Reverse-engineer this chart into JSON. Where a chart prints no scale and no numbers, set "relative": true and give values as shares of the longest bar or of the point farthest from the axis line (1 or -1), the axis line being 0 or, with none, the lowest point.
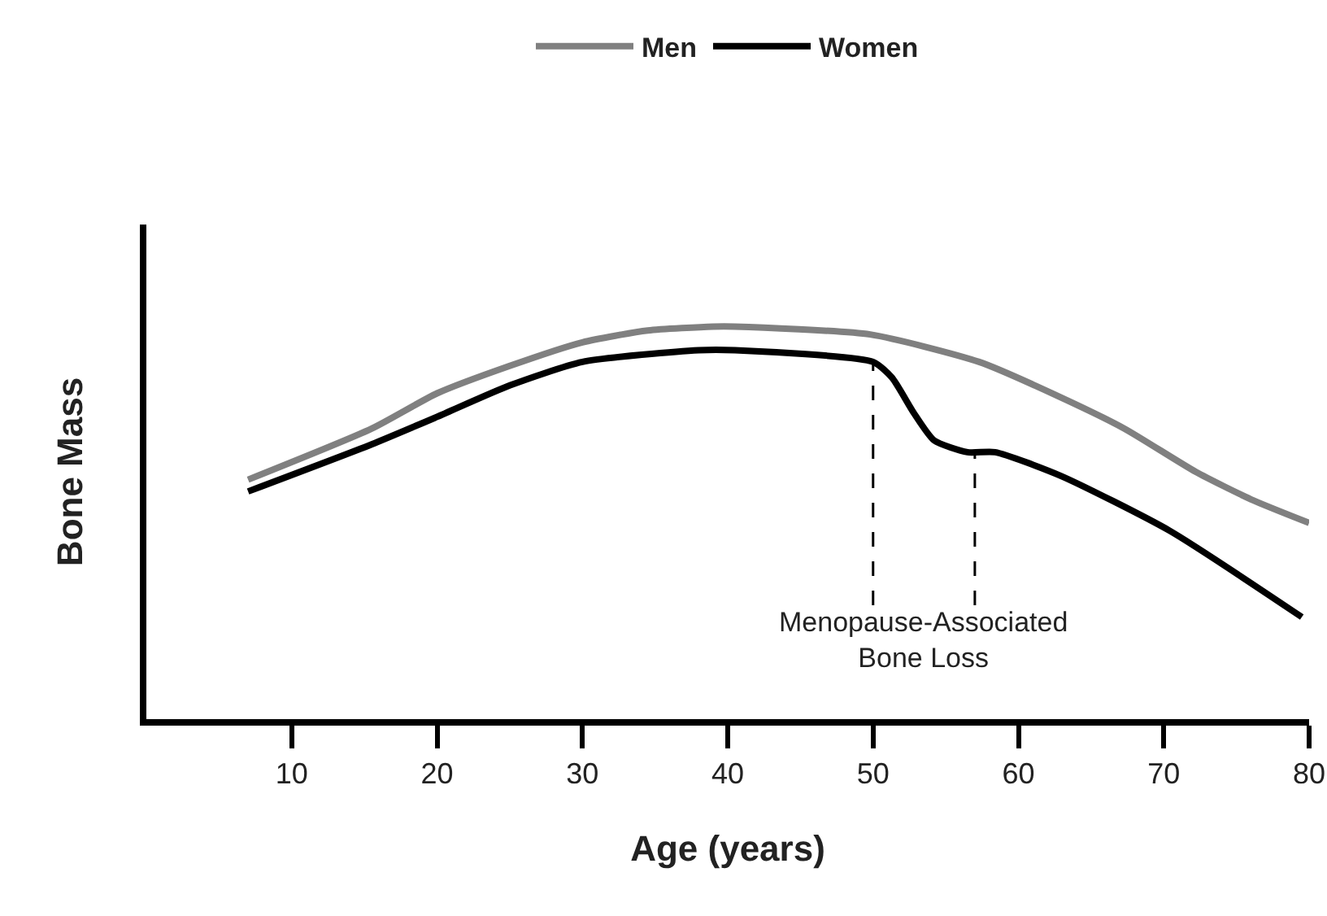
{
  "chart_data": {
    "type": "line",
    "relative": true,
    "xlabel": "Age (years)",
    "ylabel": "Bone Mass",
    "xlim": [
      0,
      80
    ],
    "xticks": [
      10,
      20,
      30,
      40,
      50,
      60,
      70,
      80
    ],
    "legend": "top",
    "marker": "none",
    "line_style": "solid",
    "grid": false,
    "series": [
      {
        "name": "Men",
        "color": "#808080",
        "x": [
          7,
          15.5,
          20,
          25,
          30,
          34.5,
          39,
          40.5,
          49.8,
          57.3,
          62.9,
          67.3,
          72.2,
          76,
          80
        ],
        "values": [
          0.61,
          0.74,
          0.83,
          0.9,
          0.96,
          0.99,
          1,
          1,
          0.98,
          0.91,
          0.82,
          0.74,
          0.63,
          0.56,
          0.5
        ]
      },
      {
        "name": "Women",
        "color": "#000000",
        "x": [
          7,
          15.5,
          20,
          25,
          30,
          38,
          40.5,
          50,
          51.3,
          52.8,
          54.2,
          56.5,
          58.4,
          62.9,
          70.4,
          79.5
        ],
        "values": [
          0.58,
          0.7,
          0.77,
          0.85,
          0.91,
          0.94,
          0.94,
          0.91,
          0.87,
          0.78,
          0.71,
          0.68,
          0.68,
          0.62,
          0.48,
          0.26
        ]
      }
    ],
    "ref_lines": [
      {
        "axis": "x",
        "value": 50,
        "line_style": "dashed",
        "color": "#000000"
      },
      {
        "axis": "x",
        "value": 57,
        "line_style": "dashed",
        "color": "#000000"
      }
    ],
    "annotations": [
      "Menopause-Associated\nBone Loss"
    ]
  }
}
